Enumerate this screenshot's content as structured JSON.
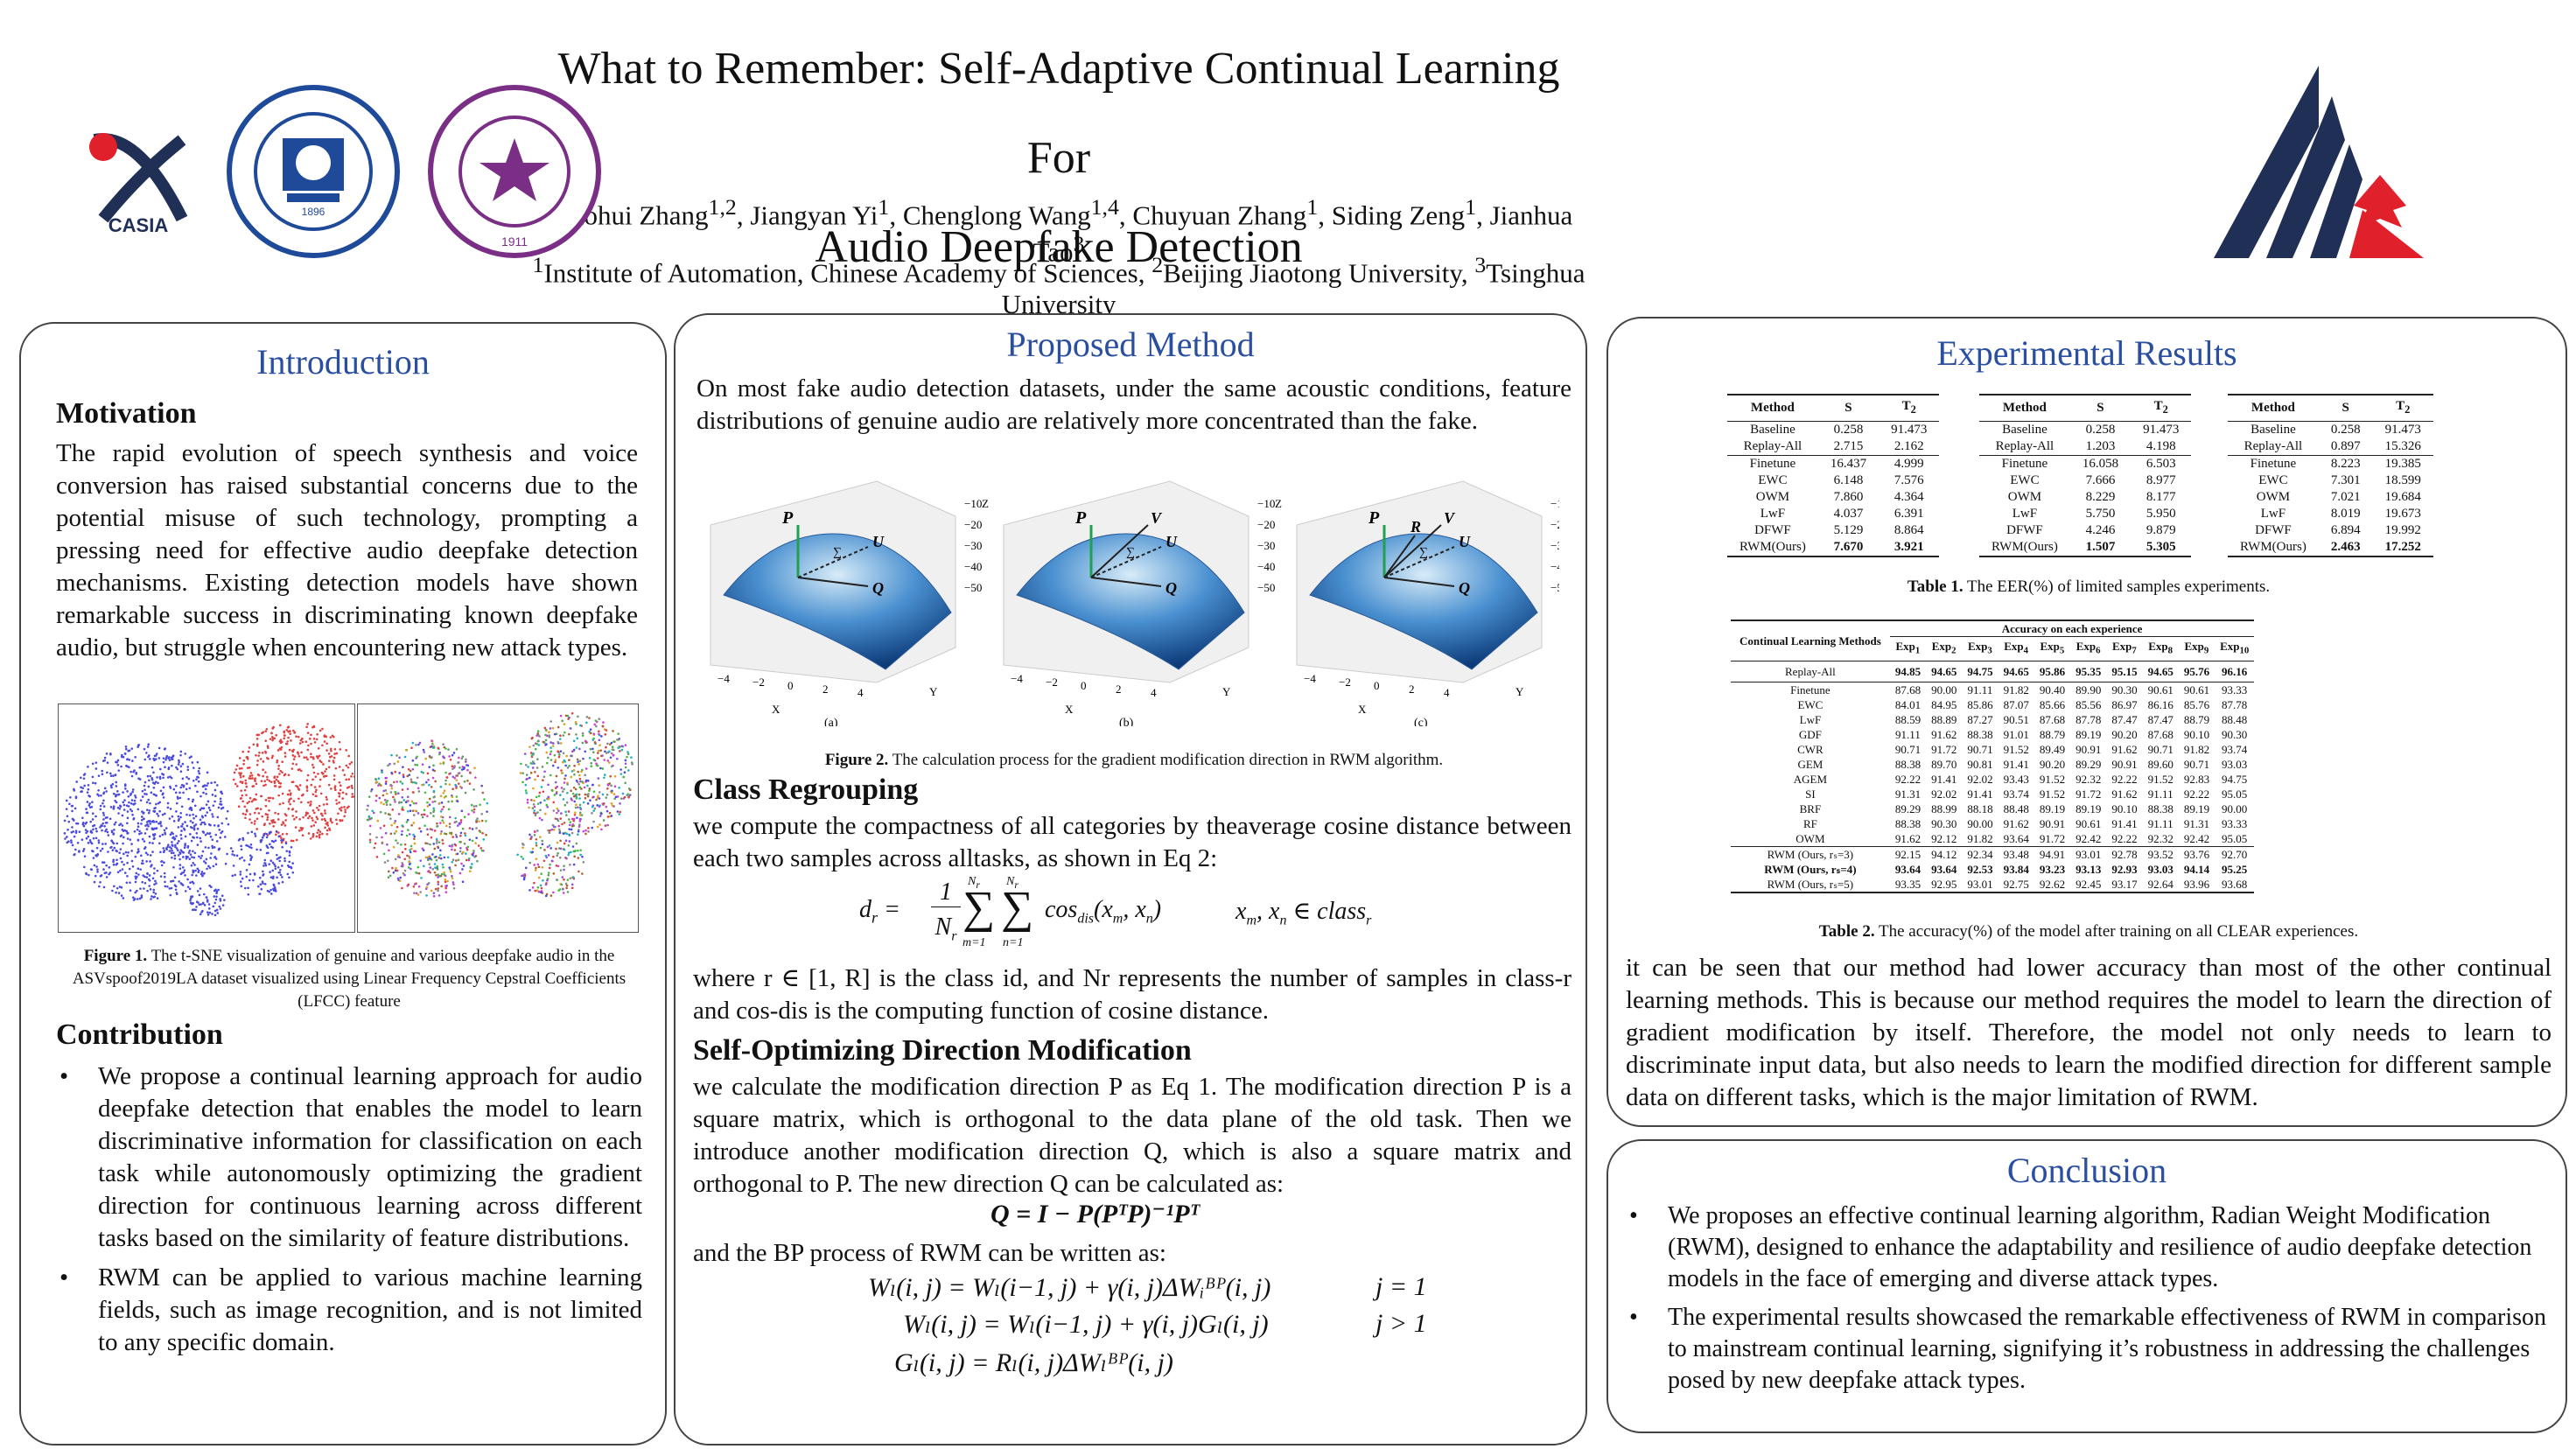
{
  "header": {
    "title_line1": "What to Remember: Self-Adaptive Continual Learning For",
    "title_line2": "Audio Deepfake Detection",
    "authors": "Xiaohui Zhang1,2, Jiangyan Yi1, Chenglong Wang1,4, Chuyuan Zhang1, Siding Zeng1, Jianhua Tao3",
    "affiliations": "1Institute of Automation, Chinese Academy of Sciences, 2Beijing Jiaotong University, 3Tsinghua University",
    "logo_casia_text": "CASIA",
    "logo_bjtu_year": "1896",
    "logo_tsinghua_year": "1911"
  },
  "intro": {
    "title": "Introduction",
    "motivation_heading": "Motivation",
    "motivation_text": "The rapid evolution of speech synthesis and voice conversion has raised substantial concerns due to the potential misuse of such technology, prompting a pressing need for effective audio deepfake detection mechanisms. Existing detection models have shown remarkable success in discriminating known deepfake audio, but struggle when encountering new attack types.",
    "fig1_label": "Figure 1.",
    "fig1_caption": " The t-SNE visualization of genuine and various deepfake audio in the ASVspoof2019LA dataset visualized using Linear Frequency Cepstral Coefficients (LFCC) feature",
    "contribution_heading": "Contribution",
    "bullets": [
      "We propose a continual learning approach for audio deepfake detection that enables the model to learn discriminative information for classification on each task while autonomously optimizing the gradient direction for continuous learning across different tasks based on the similarity of feature distributions.",
      "RWM can be applied to various machine learning fields, such as image recognition, and is not limited to any specific domain."
    ]
  },
  "method": {
    "title": "Proposed Method",
    "intro_text": "On most fake audio detection datasets, under the same acoustic conditions, feature distributions of genuine audio are relatively more concentrated than the fake.",
    "fig2_label": "Figure 2.",
    "fig2_caption": " The calculation process for the gradient modification direction in RWM algorithm.",
    "subfig_labels": [
      "(a)",
      "(b)",
      "(c)"
    ],
    "z_ticks": [
      "−10",
      "−20",
      "−30",
      "−40",
      "−50"
    ],
    "x_ticks": [
      "−4",
      "−2",
      "0",
      "2",
      "4"
    ],
    "vec_labels": {
      "P": "P",
      "U": "U",
      "Q": "Q",
      "V": "V",
      "R": "R",
      "sum": "∑"
    },
    "axis_letters": {
      "x": "X",
      "y": "Y",
      "z": "Z"
    },
    "regroup_heading": "Class Regrouping",
    "regroup_text": "we compute the compactness of all categories by theaverage cosine distance between each two samples across alltasks, as shown in Eq 2:",
    "eq2_lhs": "d",
    "eq2_sub": "r",
    "eq2_frac_num": "1",
    "eq2_frac_den": "N",
    "eq2_sum_top": "N",
    "eq2_sum_bot1": "m=1",
    "eq2_sum_bot2": "n=1",
    "eq2_body": "cos",
    "eq2_body_sub": "dis",
    "eq2_args": "(x",
    "eq2_cond": "x",
    "eq2_cond_text": "∈ class",
    "regroup_text2": "where r ∈ [1, R] is the class id, and Nr represents the number of samples in class-r and cos-dis is the computing function of cosine distance.",
    "som_heading": "Self-Optimizing Direction Modification",
    "som_text": "we calculate the modification direction P as Eq 1. The modification direction P is a square matrix, which is orthogonal to the data plane of the old task. Then we introduce another modification direction Q, which is also a square matrix and orthogonal to P. The new direction Q can be calculated as:",
    "eq_q": "Q = I − P(PᵀP)⁻¹Pᵀ",
    "bp_text": "and the BP process of RWM can be written as:",
    "eq_bp1": "Wₗ(i, j) = Wₗ(i−1, j) + γ(i, j)ΔWᵢᴮᴾ(i, j)",
    "eq_bp1_cond": "j = 1",
    "eq_bp2": "Wₗ(i, j) = Wₗ(i−1, j) + γ(i, j)Gₗ(i, j)",
    "eq_bp2_cond": "j > 1",
    "eq_bp3": "Gₗ(i, j) = Rₗ(i, j)ΔWₗᴮᴾ(i, j)"
  },
  "results": {
    "title": "Experimental Results",
    "t1_label": "Table 1.",
    "t1_caption": " The EER(%) of limited samples experiments.",
    "t1_headers": [
      "Method",
      "S",
      "T2"
    ],
    "t1_blocks": [
      {
        "rows": [
          [
            "Baseline",
            "0.258",
            "91.473"
          ],
          [
            "Replay-All",
            "2.715",
            "2.162"
          ],
          [
            "Finetune",
            "16.437",
            "4.999"
          ],
          [
            "EWC",
            "6.148",
            "7.576"
          ],
          [
            "OWM",
            "7.860",
            "4.364"
          ],
          [
            "LwF",
            "4.037",
            "6.391"
          ],
          [
            "DFWF",
            "5.129",
            "8.864"
          ],
          [
            "RWM(Ours)",
            "7.670",
            "3.921"
          ]
        ]
      },
      {
        "rows": [
          [
            "Baseline",
            "0.258",
            "91.473"
          ],
          [
            "Replay-All",
            "1.203",
            "4.198"
          ],
          [
            "Finetune",
            "16.058",
            "6.503"
          ],
          [
            "EWC",
            "7.666",
            "8.977"
          ],
          [
            "OWM",
            "8.229",
            "8.177"
          ],
          [
            "LwF",
            "5.750",
            "5.950"
          ],
          [
            "DFWF",
            "4.246",
            "9.879"
          ],
          [
            "RWM(Ours)",
            "1.507",
            "5.305"
          ]
        ]
      },
      {
        "rows": [
          [
            "Baseline",
            "0.258",
            "91.473"
          ],
          [
            "Replay-All",
            "0.897",
            "15.326"
          ],
          [
            "Finetune",
            "8.223",
            "19.385"
          ],
          [
            "EWC",
            "7.301",
            "18.599"
          ],
          [
            "OWM",
            "7.021",
            "19.684"
          ],
          [
            "LwF",
            "8.019",
            "19.673"
          ],
          [
            "DFWF",
            "6.894",
            "19.992"
          ],
          [
            "RWM(Ours)",
            "2.463",
            "17.252"
          ]
        ]
      }
    ],
    "t2_label": "Table 2.",
    "t2_caption": " The accuracy(%) of the model after training on all CLEAR experiences.",
    "t2_head_method": "Continual Learning Methods",
    "t2_head_group": "Accuracy on each experience",
    "t2_exps": [
      "Exp1",
      "Exp2",
      "Exp3",
      "Exp4",
      "Exp5",
      "Exp6",
      "Exp7",
      "Exp8",
      "Exp9",
      "Exp10"
    ],
    "t2_replay": [
      "Replay-All",
      "94.85",
      "94.65",
      "94.75",
      "94.65",
      "95.86",
      "95.35",
      "95.15",
      "94.65",
      "95.76",
      "96.16"
    ],
    "t2_rows": [
      [
        "Finetune",
        "87.68",
        "90.00",
        "91.11",
        "91.82",
        "90.40",
        "89.90",
        "90.30",
        "90.61",
        "90.61",
        "93.33"
      ],
      [
        "EWC",
        "84.01",
        "84.95",
        "85.86",
        "87.07",
        "85.66",
        "85.56",
        "86.97",
        "86.16",
        "85.76",
        "87.78"
      ],
      [
        "LwF",
        "88.59",
        "88.89",
        "87.27",
        "90.51",
        "87.68",
        "87.78",
        "87.47",
        "87.47",
        "88.79",
        "88.48"
      ],
      [
        "GDF",
        "91.11",
        "91.62",
        "88.38",
        "91.01",
        "88.79",
        "89.19",
        "90.20",
        "87.68",
        "90.10",
        "90.30"
      ],
      [
        "CWR",
        "90.71",
        "91.72",
        "90.71",
        "91.52",
        "89.49",
        "90.91",
        "91.62",
        "90.71",
        "91.82",
        "93.74"
      ],
      [
        "GEM",
        "88.38",
        "89.70",
        "90.81",
        "91.41",
        "90.20",
        "89.29",
        "90.91",
        "89.60",
        "90.71",
        "93.03"
      ],
      [
        "AGEM",
        "92.22",
        "91.41",
        "92.02",
        "93.43",
        "91.52",
        "92.32",
        "92.22",
        "91.52",
        "92.83",
        "94.75"
      ],
      [
        "SI",
        "91.31",
        "92.02",
        "91.41",
        "93.74",
        "91.52",
        "91.72",
        "91.62",
        "91.11",
        "92.22",
        "95.05"
      ],
      [
        "BRF",
        "89.29",
        "88.99",
        "88.18",
        "88.48",
        "89.19",
        "89.19",
        "90.10",
        "88.38",
        "89.19",
        "90.00"
      ],
      [
        "RF",
        "88.38",
        "90.30",
        "90.00",
        "91.62",
        "90.91",
        "90.61",
        "91.41",
        "91.11",
        "91.31",
        "93.33"
      ],
      [
        "OWM",
        "91.62",
        "92.12",
        "91.82",
        "93.64",
        "91.72",
        "92.42",
        "92.22",
        "92.32",
        "92.42",
        "95.05"
      ]
    ],
    "t2_ours": [
      [
        "RWM (Ours, rₛ=3)",
        "92.15",
        "94.12",
        "92.34",
        "93.48",
        "94.91",
        "93.01",
        "92.78",
        "93.52",
        "93.76",
        "92.70"
      ],
      [
        "RWM (Ours, rₛ=4)",
        "93.64",
        "93.64",
        "92.53",
        "93.84",
        "93.23",
        "93.13",
        "92.93",
        "93.03",
        "94.14",
        "95.25"
      ],
      [
        "RWM (Ours, rₛ=5)",
        "93.35",
        "92.95",
        "93.01",
        "92.75",
        "92.62",
        "92.45",
        "93.17",
        "92.64",
        "93.96",
        "93.68"
      ]
    ],
    "discussion": "it can be seen that our method had lower accuracy than most of the other continual learning methods. This is because our method requires the model to learn the direction of gradient modification by itself. Therefore, the model not only needs to learn to discriminate input data, but also needs to learn the modified direction for different sample data on different tasks, which is the major limitation of RWM."
  },
  "conclusion": {
    "title": "Conclusion",
    "bullets": [
      "We proposes an effective continual learning algorithm, Radian Weight Modification (RWM), designed to enhance the adaptability and resilience of audio deepfake detection models in the face of emerging and diverse attack types.",
      "The experimental results showcased the remarkable effectiveness of RWM in comparison to mainstream continual learning, signifying it’s robustness in addressing the challenges posed by new deepfake attack types."
    ]
  },
  "colors": {
    "title_blue": "#2a4fa0",
    "logo_navy": "#1f2f55",
    "logo_red": "#e0202a",
    "tsinghua_purple": "#7b2e86"
  }
}
